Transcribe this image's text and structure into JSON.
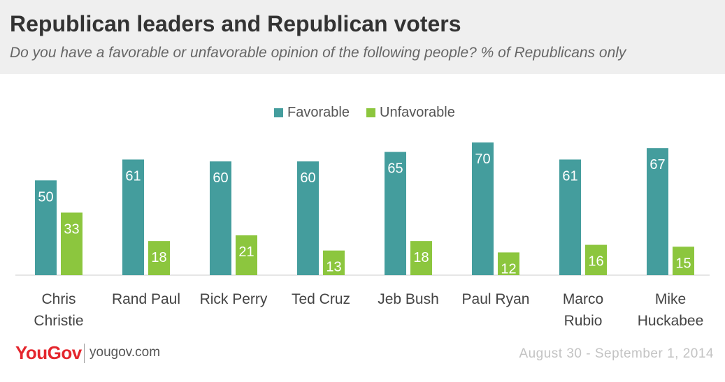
{
  "header": {
    "title": "Republican leaders and Republican voters",
    "subtitle": "Do you have a favorable or unfavorable opinion of the following people? % of Republicans only"
  },
  "chart_data": {
    "type": "bar",
    "categories": [
      [
        "Chris",
        "Christie"
      ],
      [
        "Rand Paul"
      ],
      [
        "Rick Perry"
      ],
      [
        "Ted Cruz"
      ],
      [
        "Jeb Bush"
      ],
      [
        "Paul Ryan"
      ],
      [
        "Marco",
        "Rubio"
      ],
      [
        "Mike",
        "Huckabee"
      ]
    ],
    "series": [
      {
        "name": "Favorable",
        "color": "#449d9d",
        "values": [
          50,
          61,
          60,
          60,
          65,
          70,
          61,
          67
        ]
      },
      {
        "name": "Unfavorable",
        "color": "#8cc63e",
        "values": [
          33,
          18,
          21,
          13,
          18,
          12,
          16,
          15
        ]
      }
    ],
    "ylim": [
      0,
      70
    ],
    "legend_position": "top-center",
    "grid": false
  },
  "footer": {
    "brand": "YouGov",
    "url": "yougov.com",
    "date": "August 30 - September 1, 2014"
  }
}
